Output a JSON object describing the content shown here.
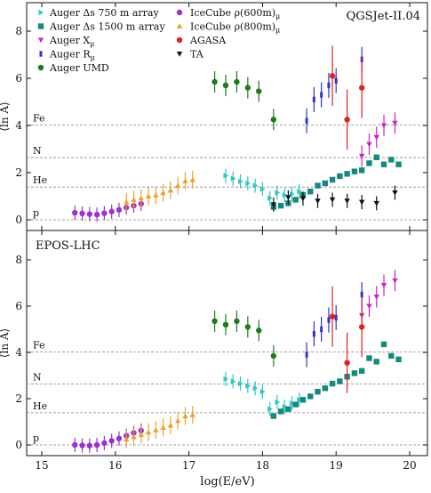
{
  "chart_data": [
    {
      "type": "scatter",
      "title": "QGSJet-II.04",
      "ylabel": "⟨ln A⟩",
      "xlabel": "log(E/eV)",
      "xlim": [
        14.75,
        20.25
      ],
      "ylim": [
        -0.5,
        9.0
      ],
      "yticks": [
        0,
        2,
        4,
        6,
        8
      ],
      "reference_lines": [
        {
          "label": "p",
          "value": 0.0
        },
        {
          "label": "He",
          "value": 1.39
        },
        {
          "label": "N",
          "value": 2.64
        },
        {
          "label": "Fe",
          "value": 4.02
        }
      ],
      "series": [
        {
          "name": "Auger Δs 750 m array",
          "x": [
            17.5,
            17.6,
            17.7,
            17.8,
            17.9,
            18.0,
            18.1,
            18.2,
            18.3,
            18.4,
            18.5
          ],
          "y": [
            1.87,
            1.75,
            1.63,
            1.55,
            1.45,
            1.3,
            0.92,
            1.15,
            1.05,
            1.1,
            1.2
          ]
        },
        {
          "name": "Auger Δs 1500 m array",
          "x": [
            18.15,
            18.25,
            18.35,
            18.45,
            18.55,
            18.65,
            18.75,
            18.85,
            18.95,
            19.05,
            19.15,
            19.25,
            19.35,
            19.45,
            19.55,
            19.65,
            19.75,
            19.85
          ],
          "y": [
            0.55,
            0.6,
            0.7,
            0.85,
            1.05,
            1.2,
            1.45,
            1.55,
            1.7,
            1.85,
            1.95,
            2.05,
            2.1,
            2.4,
            2.65,
            2.35,
            2.55,
            2.35
          ]
        },
        {
          "name": "Auger Xmax",
          "x": [
            19.35,
            19.45,
            19.55,
            19.65,
            19.8
          ],
          "y": [
            2.7,
            3.2,
            3.5,
            4.0,
            4.1
          ]
        },
        {
          "name": "Auger Rμ",
          "x": [
            18.6,
            18.7,
            18.8,
            18.9,
            19.0,
            19.35
          ],
          "y": [
            4.2,
            5.1,
            5.3,
            5.7,
            5.9,
            6.8
          ]
        },
        {
          "name": "Auger UMD",
          "x": [
            17.35,
            17.5,
            17.65,
            17.8,
            17.95,
            18.15
          ],
          "y": [
            5.85,
            5.7,
            5.85,
            5.6,
            5.45,
            4.25
          ]
        },
        {
          "name": "IceCube ρμ(600m)",
          "x": [
            15.45,
            15.55,
            15.65,
            15.75,
            15.85,
            15.95,
            16.05,
            16.15,
            16.25,
            16.35
          ],
          "y": [
            0.3,
            0.27,
            0.24,
            0.22,
            0.28,
            0.35,
            0.42,
            0.52,
            0.6,
            0.68
          ]
        },
        {
          "name": "IceCube ρμ(800m)",
          "x": [
            16.15,
            16.25,
            16.35,
            16.45,
            16.55,
            16.65,
            16.75,
            16.85,
            16.95,
            17.05
          ],
          "y": [
            0.75,
            0.85,
            0.92,
            1.0,
            1.05,
            1.15,
            1.25,
            1.45,
            1.65,
            1.7
          ]
        },
        {
          "name": "AGASA",
          "x": [
            18.95,
            19.15,
            19.35
          ],
          "y": [
            6.1,
            4.25,
            5.6
          ]
        },
        {
          "name": "TA",
          "x": [
            18.15,
            18.35,
            18.55,
            18.75,
            18.95,
            19.15,
            19.35,
            19.55,
            19.8
          ],
          "y": [
            0.65,
            0.95,
            0.9,
            0.8,
            0.85,
            0.8,
            0.75,
            0.7,
            1.15
          ]
        }
      ]
    },
    {
      "type": "scatter",
      "title": "EPOS-LHC",
      "ylabel": "⟨ln A⟩",
      "xlabel": "log(E/eV)",
      "xlim": [
        14.75,
        20.25
      ],
      "ylim": [
        -0.5,
        9.0
      ],
      "yticks": [
        0,
        2,
        4,
        6,
        8
      ],
      "xticks": [
        15,
        16,
        17,
        18,
        19,
        20
      ],
      "reference_lines": [
        {
          "label": "p",
          "value": 0.0
        },
        {
          "label": "He",
          "value": 1.39
        },
        {
          "label": "N",
          "value": 2.64
        },
        {
          "label": "Fe",
          "value": 4.02
        }
      ],
      "series": [
        {
          "name": "Auger Δs 750 m array",
          "x": [
            17.5,
            17.6,
            17.7,
            17.8,
            17.9,
            18.0,
            18.1,
            18.2,
            18.3,
            18.4,
            18.5
          ],
          "y": [
            2.85,
            2.75,
            2.65,
            2.55,
            2.45,
            2.3,
            1.55,
            1.85,
            1.65,
            1.8,
            1.95
          ]
        },
        {
          "name": "Auger Δs 1500 m array",
          "x": [
            18.15,
            18.25,
            18.35,
            18.45,
            18.55,
            18.65,
            18.75,
            18.85,
            18.95,
            19.05,
            19.15,
            19.25,
            19.35,
            19.45,
            19.55,
            19.65,
            19.75,
            19.85
          ],
          "y": [
            1.25,
            1.45,
            1.55,
            1.75,
            1.95,
            2.1,
            2.3,
            2.45,
            2.65,
            2.75,
            2.95,
            3.1,
            3.2,
            3.75,
            3.6,
            4.35,
            3.85,
            3.7
          ]
        },
        {
          "name": "Auger Xmax",
          "x": [
            19.35,
            19.45,
            19.55,
            19.65,
            19.8
          ],
          "y": [
            5.6,
            6.0,
            6.4,
            6.9,
            7.1
          ]
        },
        {
          "name": "Auger Rμ",
          "x": [
            18.6,
            18.7,
            18.8,
            18.9,
            19.0,
            19.35
          ],
          "y": [
            3.9,
            4.8,
            5.0,
            5.4,
            5.5,
            6.5
          ]
        },
        {
          "name": "Auger UMD",
          "x": [
            17.35,
            17.5,
            17.65,
            17.8,
            17.95,
            18.15
          ],
          "y": [
            5.35,
            5.2,
            5.35,
            5.1,
            4.95,
            3.85
          ]
        },
        {
          "name": "IceCube ρμ(600m)",
          "x": [
            15.45,
            15.55,
            15.65,
            15.75,
            15.85,
            15.95,
            16.05,
            16.15,
            16.25,
            16.35
          ],
          "y": [
            0.0,
            -0.02,
            -0.03,
            0.0,
            0.08,
            0.18,
            0.28,
            0.4,
            0.52,
            0.62
          ]
        },
        {
          "name": "IceCube ρμ(800m)",
          "x": [
            16.15,
            16.25,
            16.35,
            16.45,
            16.55,
            16.65,
            16.75,
            16.85,
            16.95,
            17.05
          ],
          "y": [
            0.25,
            0.35,
            0.45,
            0.55,
            0.65,
            0.75,
            0.85,
            1.05,
            1.25,
            1.3
          ]
        },
        {
          "name": "AGASA",
          "x": [
            18.95,
            19.15,
            19.35
          ],
          "y": [
            5.55,
            3.55,
            5.1
          ]
        },
        {
          "name": "TA",
          "x": [],
          "y": []
        }
      ]
    }
  ],
  "legend": {
    "col1": [
      "Auger Δs 750 m array",
      "Auger Δs 1500 m array",
      "Auger X",
      "Auger R",
      "Auger UMD"
    ],
    "col2": [
      "IceCube ρ(600m)",
      "IceCube ρ(800m)",
      "AGASA",
      "TA"
    ]
  },
  "colors": {
    "auger750": "#2ec7c2",
    "auger1500": "#16887e",
    "xmax": "#cc22cc",
    "rmu": "#3333cc",
    "umd": "#1e7a1e",
    "icecube600": "#9933cc",
    "icecube800": "#f0a030",
    "agasa": "#dd2222",
    "ta": "#111111"
  }
}
